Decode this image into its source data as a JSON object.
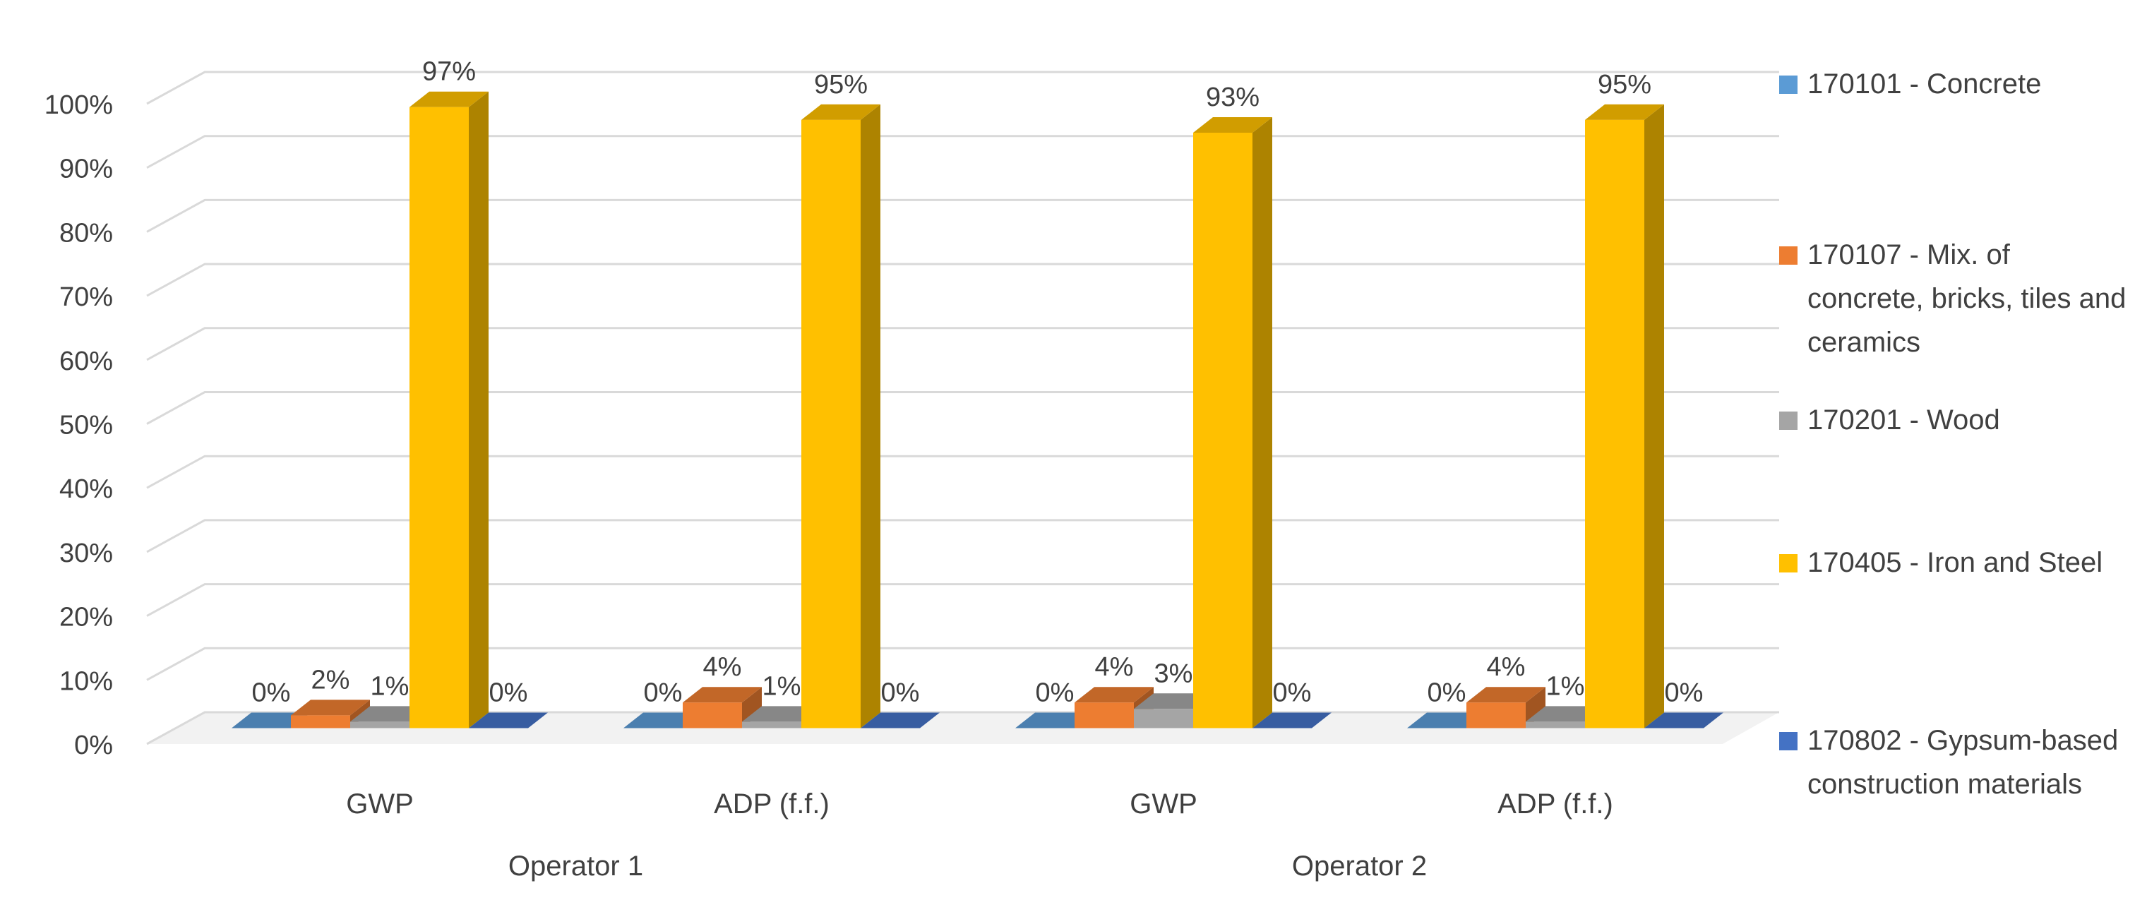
{
  "chart_data": {
    "type": "bar",
    "title": "",
    "xlabel": "",
    "ylabel": "",
    "ylim": [
      0,
      100
    ],
    "y_ticks": [
      "0%",
      "10%",
      "20%",
      "30%",
      "40%",
      "50%",
      "60%",
      "70%",
      "80%",
      "90%",
      "100%"
    ],
    "grid": true,
    "style": "3d-clustered-column",
    "legend_position": "right",
    "groups": [
      {
        "label": "Operator 1",
        "categories": [
          "GWP",
          "ADP (f.f.)"
        ]
      },
      {
        "label": "Operator 2",
        "categories": [
          "GWP",
          "ADP (f.f.)"
        ]
      }
    ],
    "categories": [
      "GWP",
      "ADP (f.f.)",
      "GWP",
      "ADP (f.f.)"
    ],
    "series": [
      {
        "name": "170101 - Concrete",
        "color": "#5B9BD5",
        "values": [
          0,
          0,
          0,
          0
        ],
        "labels": [
          "0%",
          "0%",
          "0%",
          "0%"
        ]
      },
      {
        "name": "170107 - Mix. of concrete, bricks, tiles and ceramics",
        "color": "#ED7D31",
        "values": [
          2,
          4,
          4,
          4
        ],
        "labels": [
          "2%",
          "4%",
          "4%",
          "4%"
        ]
      },
      {
        "name": "170201 - Wood",
        "color": "#A5A5A5",
        "values": [
          1,
          1,
          3,
          1
        ],
        "labels": [
          "1%",
          "1%",
          "3%",
          "1%"
        ]
      },
      {
        "name": "170405 - Iron and Steel",
        "color": "#FFC000",
        "values": [
          97,
          95,
          93,
          95
        ],
        "labels": [
          "97%",
          "95%",
          "93%",
          "95%"
        ]
      },
      {
        "name": "170802 - Gypsum-based construction materials",
        "color": "#4472C4",
        "values": [
          0,
          0,
          0,
          0
        ],
        "labels": [
          "0%",
          "0%",
          "0%",
          "0%"
        ]
      }
    ]
  },
  "colors": {
    "grid": "#d9d9d9",
    "text": "#404040",
    "background": "#ffffff"
  }
}
